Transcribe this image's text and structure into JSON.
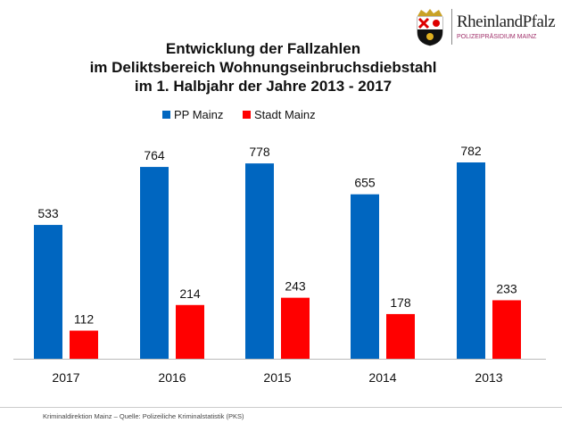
{
  "header": {
    "logo_text": "RheinlandPfalz",
    "logo_subtitle": "POLIZEIPRÄSIDIUM MAINZ"
  },
  "title_lines": [
    "Entwicklung der Fallzahlen",
    "im Deliktsbereich Wohnungseinbruchsdiebstahl",
    "im 1. Halbjahr der Jahre 2013 - 2017"
  ],
  "footer": "Kriminaldirektion Mainz – Quelle: Polizeiliche Kriminalstatistik (PKS)",
  "chart_data": {
    "type": "bar",
    "title": "Entwicklung der Fallzahlen im Deliktsbereich Wohnungseinbruchsdiebstahl im 1. Halbjahr der Jahre 2013 - 2017",
    "categories": [
      "2017",
      "2016",
      "2015",
      "2014",
      "2013"
    ],
    "series": [
      {
        "name": "PP Mainz",
        "color": "#0066C0",
        "values": [
          533,
          764,
          778,
          655,
          782
        ]
      },
      {
        "name": "Stadt Mainz",
        "color": "#FF0000",
        "values": [
          112,
          214,
          243,
          178,
          233
        ]
      }
    ],
    "ylim": [
      0,
      850
    ],
    "grid": false,
    "legend": "top",
    "data_labels": true
  }
}
